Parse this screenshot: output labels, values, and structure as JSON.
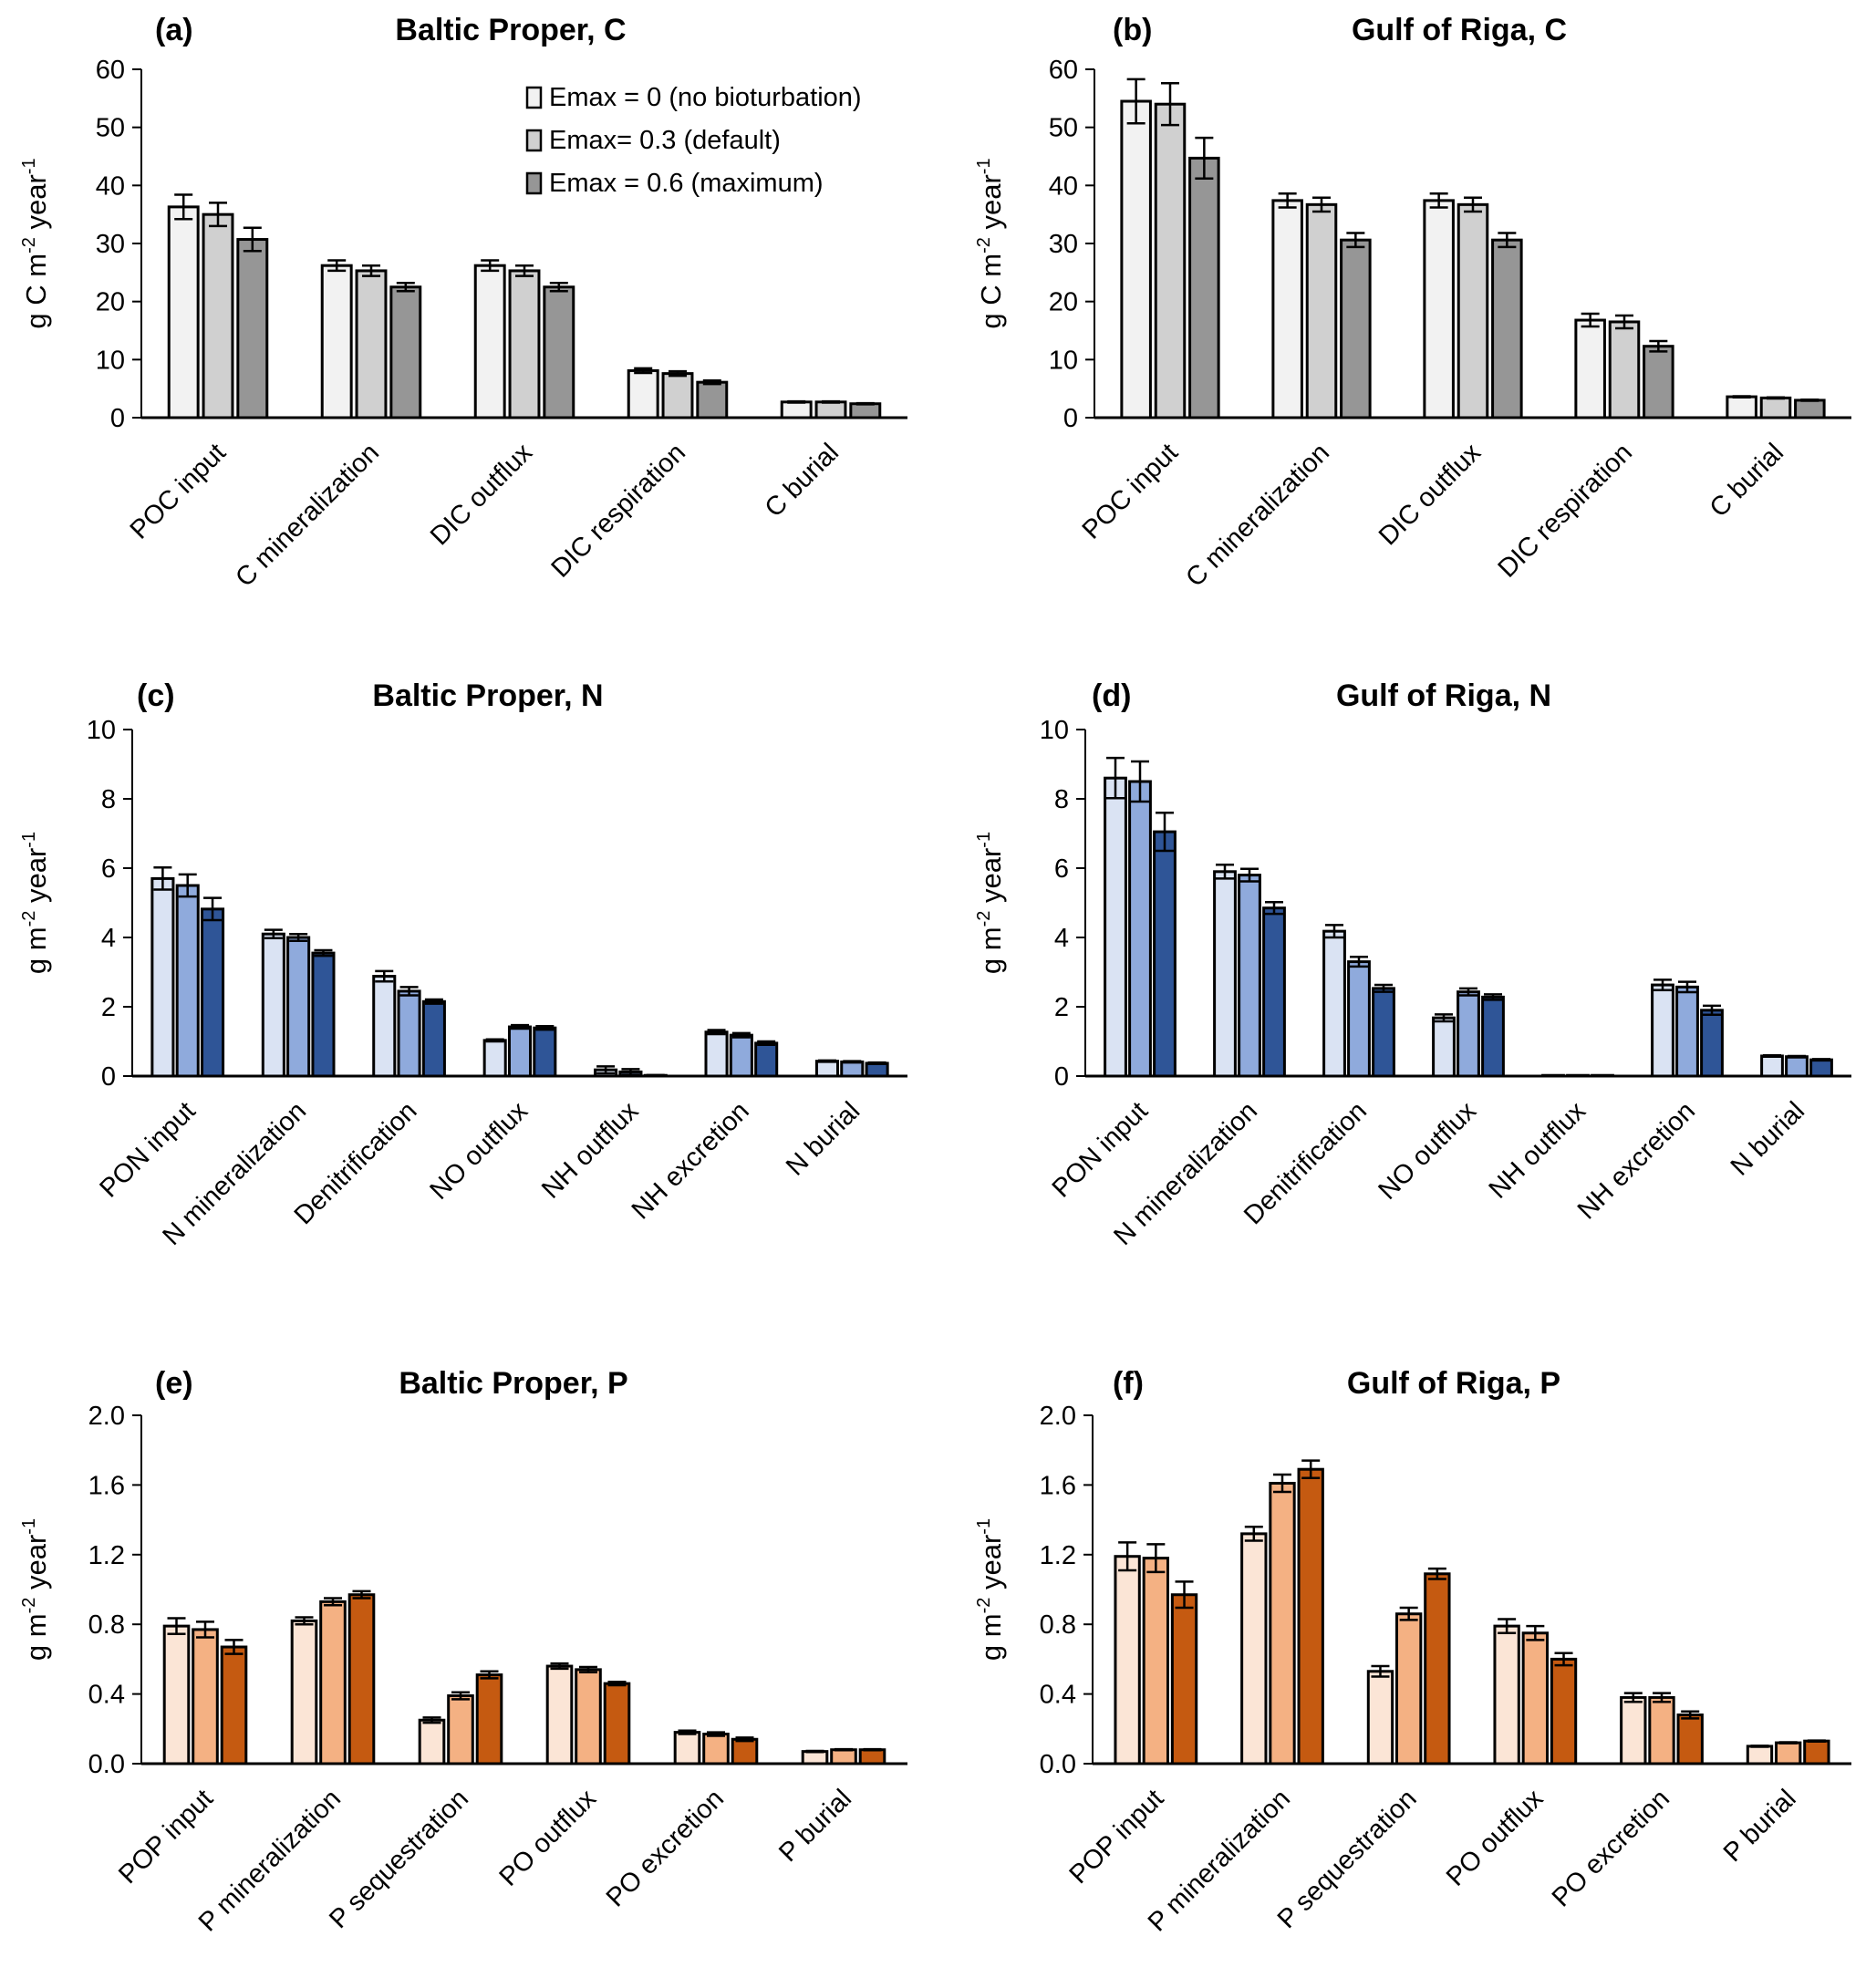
{
  "figure": {
    "legend": {
      "entries": [
        "Emax = 0 (no bioturbation)",
        "Emax= 0.3 (default)",
        "Emax = 0.6 (maximum)"
      ]
    }
  },
  "chart_data": [
    {
      "type": "bar",
      "panel": "(a)",
      "title": "Baltic Proper, C",
      "ylabel": "g C m-2 year-1",
      "ylabel_parts": {
        "base": "g C m",
        "sup1": "-2",
        "mid": " year",
        "sup2": "-1"
      },
      "ylim": [
        0,
        60
      ],
      "yticks": [
        "0",
        "10",
        "20",
        "30",
        "40",
        "50",
        "60"
      ],
      "ytick_values": [
        0,
        10,
        20,
        30,
        40,
        50,
        60
      ],
      "categories": [
        "POC input",
        "C mineralization",
        "DIC outflux",
        "DIC respiration",
        "C burial"
      ],
      "legend": "top-right",
      "colors": [
        "#F2F2F2",
        "#D0D0D0",
        "#969696"
      ],
      "series": [
        {
          "name": "Emax = 0 (no bioturbation)",
          "values": [
            36.3,
            26.2,
            26.2,
            8.1,
            2.7
          ],
          "errors": [
            2.1,
            0.9,
            0.9,
            0.4,
            0.1
          ]
        },
        {
          "name": "Emax= 0.3 (default)",
          "values": [
            35.0,
            25.3,
            25.3,
            7.6,
            2.7
          ],
          "errors": [
            2.0,
            0.9,
            0.9,
            0.4,
            0.1
          ]
        },
        {
          "name": "Emax = 0.6 (maximum)",
          "values": [
            30.7,
            22.5,
            22.5,
            6.1,
            2.4
          ],
          "errors": [
            2.0,
            0.7,
            0.7,
            0.3,
            0.1
          ]
        }
      ]
    },
    {
      "type": "bar",
      "panel": "(b)",
      "title": "Gulf of Riga, C",
      "ylabel": "g C m-2 year-1",
      "ylabel_parts": {
        "base": "g C m",
        "sup1": "-2",
        "mid": " year",
        "sup2": "-1"
      },
      "ylim": [
        0,
        60
      ],
      "yticks": [
        "0",
        "10",
        "20",
        "30",
        "40",
        "50",
        "60"
      ],
      "ytick_values": [
        0,
        10,
        20,
        30,
        40,
        50,
        60
      ],
      "categories": [
        "POC input",
        "C mineralization",
        "DIC outflux",
        "DIC respiration",
        "C burial"
      ],
      "colors": [
        "#F2F2F2",
        "#D0D0D0",
        "#969696"
      ],
      "series": [
        {
          "name": "Emax = 0 (no bioturbation)",
          "values": [
            54.5,
            37.4,
            37.4,
            16.8,
            3.6
          ],
          "errors": [
            3.8,
            1.2,
            1.2,
            1.1,
            0.1
          ]
        },
        {
          "name": "Emax= 0.3 (default)",
          "values": [
            54.0,
            36.7,
            36.7,
            16.5,
            3.4
          ],
          "errors": [
            3.6,
            1.2,
            1.2,
            1.1,
            0.1
          ]
        },
        {
          "name": "Emax = 0.6 (maximum)",
          "values": [
            44.7,
            30.6,
            30.6,
            12.3,
            3.0
          ],
          "errors": [
            3.5,
            1.2,
            1.2,
            0.9,
            0.1
          ]
        }
      ]
    },
    {
      "type": "bar",
      "panel": "(c)",
      "title": "Baltic Proper, N",
      "ylabel": "g m-2 year-1",
      "ylabel_parts": {
        "base": "g m",
        "sup1": "-2",
        "mid": " year",
        "sup2": "-1"
      },
      "ylim": [
        0,
        10
      ],
      "yticks": [
        "0",
        "2",
        "4",
        "6",
        "8",
        "10"
      ],
      "ytick_values": [
        0,
        2,
        4,
        6,
        8,
        10
      ],
      "categories": [
        "PON input",
        "N mineralization",
        "Denitrification",
        "NO outflux",
        "NH outflux",
        "NH excretion",
        "N burial"
      ],
      "colors": [
        "#DAE3F3",
        "#8FAADC",
        "#2F5597"
      ],
      "series": [
        {
          "name": "Emax = 0 (no bioturbation)",
          "values": [
            5.7,
            4.1,
            2.88,
            1.03,
            0.18,
            1.27,
            0.43
          ],
          "errors": [
            0.32,
            0.12,
            0.15,
            0.03,
            0.1,
            0.06,
            0.02
          ]
        },
        {
          "name": "Emax= 0.3 (default)",
          "values": [
            5.5,
            4.0,
            2.45,
            1.42,
            0.12,
            1.18,
            0.41
          ],
          "errors": [
            0.32,
            0.1,
            0.12,
            0.05,
            0.08,
            0.06,
            0.02
          ]
        },
        {
          "name": "Emax = 0.6 (maximum)",
          "values": [
            4.82,
            3.55,
            2.15,
            1.39,
            0.02,
            0.95,
            0.37
          ],
          "errors": [
            0.32,
            0.08,
            0.06,
            0.05,
            0.01,
            0.05,
            0.02
          ]
        }
      ]
    },
    {
      "type": "bar",
      "panel": "(d)",
      "title": "Gulf of Riga, N",
      "ylabel": "g m-2 year-1",
      "ylabel_parts": {
        "base": "g m",
        "sup1": "-2",
        "mid": " year",
        "sup2": "-1"
      },
      "ylim": [
        0,
        10
      ],
      "yticks": [
        "0",
        "2",
        "4",
        "6",
        "8",
        "10"
      ],
      "ytick_values": [
        0,
        2,
        4,
        6,
        8,
        10
      ],
      "categories": [
        "PON input",
        "N mineralization",
        "Denitrification",
        "NO outflux",
        "NH outflux",
        "NH excretion",
        "N burial"
      ],
      "colors": [
        "#DAE3F3",
        "#8FAADC",
        "#2F5597"
      ],
      "series": [
        {
          "name": "Emax = 0 (no bioturbation)",
          "values": [
            8.6,
            5.9,
            4.18,
            1.68,
            0.02,
            2.63,
            0.58
          ],
          "errors": [
            0.58,
            0.2,
            0.18,
            0.1,
            0.0,
            0.15,
            0.02
          ]
        },
        {
          "name": "Emax= 0.3 (default)",
          "values": [
            8.5,
            5.8,
            3.3,
            2.43,
            0.02,
            2.57,
            0.56
          ],
          "errors": [
            0.58,
            0.18,
            0.14,
            0.1,
            0.0,
            0.15,
            0.02
          ]
        },
        {
          "name": "Emax = 0.6 (maximum)",
          "values": [
            7.05,
            4.85,
            2.53,
            2.28,
            0.02,
            1.9,
            0.47
          ],
          "errors": [
            0.55,
            0.17,
            0.1,
            0.08,
            0.0,
            0.13,
            0.02
          ]
        }
      ]
    },
    {
      "type": "bar",
      "panel": "(e)",
      "title": "Baltic Proper, P",
      "ylabel": "g m-2 year-1",
      "ylabel_parts": {
        "base": "g m",
        "sup1": "-2",
        "mid": " year",
        "sup2": "-1"
      },
      "ylim": [
        0,
        2.0
      ],
      "yticks": [
        "0.0",
        "0.4",
        "0.8",
        "1.2",
        "1.6",
        "2.0"
      ],
      "ytick_values": [
        0,
        0.4,
        0.8,
        1.2,
        1.6,
        2.0
      ],
      "categories": [
        "POP input",
        "P mineralization",
        "P sequestration",
        "PO outflux",
        "PO excretion",
        "P burial"
      ],
      "colors": [
        "#FBE5D6",
        "#F4B183",
        "#C55A11"
      ],
      "series": [
        {
          "name": "Emax = 0 (no bioturbation)",
          "values": [
            0.79,
            0.82,
            0.25,
            0.56,
            0.18,
            0.07
          ],
          "errors": [
            0.045,
            0.02,
            0.015,
            0.015,
            0.01,
            0.003
          ]
        },
        {
          "name": "Emax= 0.3 (default)",
          "values": [
            0.77,
            0.93,
            0.39,
            0.54,
            0.17,
            0.08
          ],
          "errors": [
            0.045,
            0.02,
            0.02,
            0.015,
            0.01,
            0.003
          ]
        },
        {
          "name": "Emax = 0.6 (maximum)",
          "values": [
            0.67,
            0.97,
            0.51,
            0.46,
            0.14,
            0.08
          ],
          "errors": [
            0.04,
            0.02,
            0.02,
            0.01,
            0.01,
            0.003
          ]
        }
      ]
    },
    {
      "type": "bar",
      "panel": "(f)",
      "title": "Gulf of Riga, P",
      "ylabel": "g m-2 year-1",
      "ylabel_parts": {
        "base": "g m",
        "sup1": "-2",
        "mid": " year",
        "sup2": "-1"
      },
      "ylim": [
        0,
        2.0
      ],
      "yticks": [
        "0.0",
        "0.4",
        "0.8",
        "1.2",
        "1.6",
        "2.0"
      ],
      "ytick_values": [
        0,
        0.4,
        0.8,
        1.2,
        1.6,
        2.0
      ],
      "categories": [
        "POP input",
        "P mineralization",
        "P sequestration",
        "PO outflux",
        "PO excretion",
        "P burial"
      ],
      "colors": [
        "#FBE5D6",
        "#F4B183",
        "#C55A11"
      ],
      "series": [
        {
          "name": "Emax = 0 (no bioturbation)",
          "values": [
            1.19,
            1.32,
            0.53,
            0.79,
            0.38,
            0.1
          ],
          "errors": [
            0.08,
            0.04,
            0.03,
            0.04,
            0.025,
            0.003
          ]
        },
        {
          "name": "Emax= 0.3 (default)",
          "values": [
            1.18,
            1.61,
            0.86,
            0.75,
            0.38,
            0.12
          ],
          "errors": [
            0.08,
            0.05,
            0.035,
            0.04,
            0.025,
            0.003
          ]
        },
        {
          "name": "Emax = 0.6 (maximum)",
          "values": [
            0.97,
            1.69,
            1.09,
            0.6,
            0.28,
            0.13
          ],
          "errors": [
            0.075,
            0.05,
            0.03,
            0.035,
            0.02,
            0.003
          ]
        }
      ]
    }
  ]
}
